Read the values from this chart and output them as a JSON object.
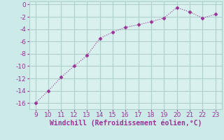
{
  "x": [
    9,
    10,
    11,
    12,
    13,
    14,
    15,
    16,
    17,
    18,
    19,
    20,
    21,
    22,
    23
  ],
  "y": [
    -16,
    -14,
    -11.8,
    -10,
    -8.3,
    -5.5,
    -4.5,
    -3.7,
    -3.3,
    -2.8,
    -2.2,
    -0.5,
    -1.2,
    -2.2,
    -1.6
  ],
  "line_color": "#993399",
  "marker": "D",
  "marker_size": 2.5,
  "bg_color": "#cceae7",
  "plot_bg": "#d8f0ee",
  "grid_color": "#b0d0cc",
  "xlabel": "Windchill (Refroidissement éolien,°C)",
  "xlabel_color": "#993399",
  "tick_color": "#993399",
  "xlim": [
    8.5,
    23.5
  ],
  "ylim": [
    -17,
    0.5
  ],
  "yticks": [
    0,
    -2,
    -4,
    -6,
    -8,
    -10,
    -12,
    -14,
    -16
  ],
  "xticks": [
    9,
    10,
    11,
    12,
    13,
    14,
    15,
    16,
    17,
    18,
    19,
    20,
    21,
    22,
    23
  ],
  "font_size": 6.5,
  "xlabel_fontsize": 7.0,
  "linewidth": 0.8
}
